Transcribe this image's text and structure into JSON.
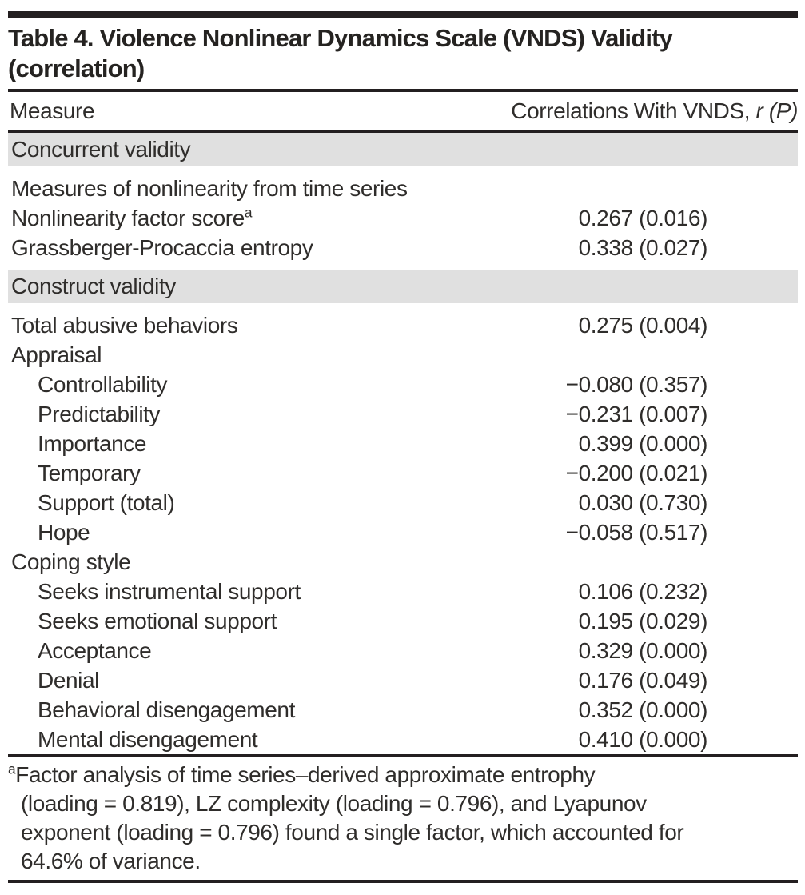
{
  "page": {
    "background": "#ffffff",
    "rule_color": "#231f20",
    "band_color": "#e0e0e0",
    "text_color": "#2f2d2b"
  },
  "table": {
    "title_line1": "Table 4. Violence Nonlinear Dynamics Scale (VNDS) Validity",
    "title_line2": "(correlation)",
    "header": {
      "measure": "Measure",
      "corr_prefix": "Correlations With VNDS,",
      "corr_r": "r",
      "corr_p": "(P)"
    },
    "rows": [
      {
        "section": true,
        "label": "Concurrent validity"
      },
      {
        "label": "Measures of nonlinearity from time series",
        "value": ""
      },
      {
        "label": "Nonlinearity factor score",
        "sup": "a",
        "value": "0.267 (0.016)"
      },
      {
        "label": "Grassberger-Procaccia entropy",
        "value": "0.338 (0.027)"
      },
      {
        "section": true,
        "label": "Construct validity"
      },
      {
        "label": "Total abusive behaviors",
        "value": "0.275 (0.004)"
      },
      {
        "label": "Appraisal",
        "value": ""
      },
      {
        "label": "Controllability",
        "indent": true,
        "value": "−0.080 (0.357)"
      },
      {
        "label": "Predictability",
        "indent": true,
        "value": "−0.231 (0.007)"
      },
      {
        "label": "Importance",
        "indent": true,
        "value": "0.399 (0.000)"
      },
      {
        "label": "Temporary",
        "indent": true,
        "value": "−0.200 (0.021)"
      },
      {
        "label": "Support (total)",
        "indent": true,
        "value": "0.030 (0.730)"
      },
      {
        "label": "Hope",
        "indent": true,
        "value": "−0.058 (0.517)"
      },
      {
        "label": "Coping style",
        "value": ""
      },
      {
        "label": "Seeks instrumental support",
        "indent": true,
        "value": "0.106 (0.232)"
      },
      {
        "label": "Seeks emotional support",
        "indent": true,
        "value": "0.195 (0.029)"
      },
      {
        "label": "Acceptance",
        "indent": true,
        "value": "0.329 (0.000)"
      },
      {
        "label": "Denial",
        "indent": true,
        "value": "0.176 (0.049)"
      },
      {
        "label": "Behavioral disengagement",
        "indent": true,
        "value": "0.352 (0.000)"
      },
      {
        "label": "Mental disengagement",
        "indent": true,
        "value": "0.410 (0.000)"
      }
    ]
  },
  "footnote": {
    "marker": "a",
    "lines": [
      "Factor analysis of time series–derived approximate entrophy",
      "(loading = 0.819), LZ complexity (loading = 0.796), and Lyapunov",
      "exponent (loading = 0.796) found a single factor, which accounted for",
      "64.6% of variance."
    ]
  }
}
